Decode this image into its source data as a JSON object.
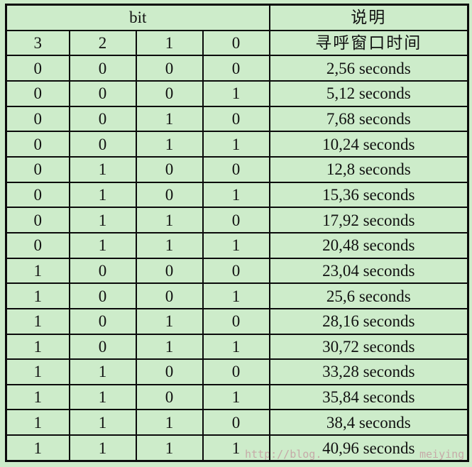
{
  "colors": {
    "page_background": "#cdecca",
    "table_border": "#0b0b0b",
    "text": "#111111",
    "watermark": "#c49fa2"
  },
  "table": {
    "header": {
      "bit_label": "bit",
      "desc_label": "说明"
    },
    "subheader": {
      "bits": [
        "3",
        "2",
        "1",
        "0"
      ],
      "desc": "寻呼窗口时间"
    },
    "rows": [
      {
        "bits": [
          "0",
          "0",
          "0",
          "0"
        ],
        "desc": "2,56 seconds"
      },
      {
        "bits": [
          "0",
          "0",
          "0",
          "1"
        ],
        "desc": "5,12 seconds"
      },
      {
        "bits": [
          "0",
          "0",
          "1",
          "0"
        ],
        "desc": "7,68 seconds"
      },
      {
        "bits": [
          "0",
          "0",
          "1",
          "1"
        ],
        "desc": "10,24 seconds"
      },
      {
        "bits": [
          "0",
          "1",
          "0",
          "0"
        ],
        "desc": "12,8 seconds"
      },
      {
        "bits": [
          "0",
          "1",
          "0",
          "1"
        ],
        "desc": "15,36 seconds"
      },
      {
        "bits": [
          "0",
          "1",
          "1",
          "0"
        ],
        "desc": "17,92 seconds"
      },
      {
        "bits": [
          "0",
          "1",
          "1",
          "1"
        ],
        "desc": "20,48 seconds"
      },
      {
        "bits": [
          "1",
          "0",
          "0",
          "0"
        ],
        "desc": "23,04 seconds"
      },
      {
        "bits": [
          "1",
          "0",
          "0",
          "1"
        ],
        "desc": "25,6 seconds"
      },
      {
        "bits": [
          "1",
          "0",
          "1",
          "0"
        ],
        "desc": "28,16 seconds"
      },
      {
        "bits": [
          "1",
          "0",
          "1",
          "1"
        ],
        "desc": "30,72 seconds"
      },
      {
        "bits": [
          "1",
          "1",
          "0",
          "0"
        ],
        "desc": "33,28 seconds"
      },
      {
        "bits": [
          "1",
          "1",
          "0",
          "1"
        ],
        "desc": "35,84 seconds"
      },
      {
        "bits": [
          "1",
          "1",
          "1",
          "0"
        ],
        "desc": "38,4 seconds"
      },
      {
        "bits": [
          "1",
          "1",
          "1",
          "1"
        ],
        "desc": "40,96 seconds"
      }
    ]
  },
  "watermark": {
    "fragment_left": "http://blog.",
    "fragment_right": "meiying"
  }
}
